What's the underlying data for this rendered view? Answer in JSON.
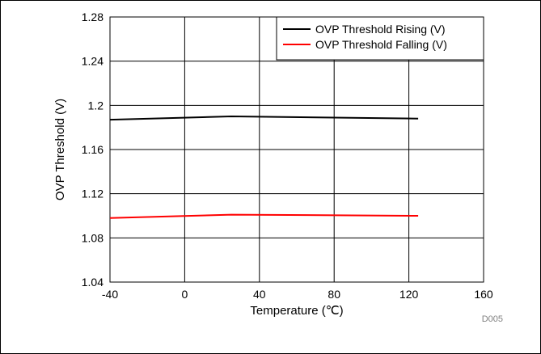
{
  "chart_data": {
    "type": "line",
    "title": "",
    "xlabel": "Temperature (℃)",
    "ylabel": "OVP Threshold (V)",
    "xlim": [
      -40,
      160
    ],
    "ylim": [
      1.04,
      1.28
    ],
    "xticks": [
      -40,
      0,
      40,
      80,
      120,
      160
    ],
    "yticks": [
      1.04,
      1.08,
      1.12,
      1.16,
      1.2,
      1.24,
      1.28
    ],
    "xtick_labels": [
      "-40",
      "0",
      "40",
      "80",
      "120",
      "160"
    ],
    "ytick_labels": [
      "1.04",
      "1.08",
      "1.12",
      "1.16",
      "1.2",
      "1.24",
      "1.28"
    ],
    "grid": true,
    "legend_position": "top-right",
    "series": [
      {
        "name": "OVP Threshold Rising (V)",
        "color": "#000000",
        "x": [
          -40,
          25,
          125
        ],
        "y": [
          1.187,
          1.19,
          1.188
        ]
      },
      {
        "name": "OVP Threshold Falling (V)",
        "color": "#ff0000",
        "x": [
          -40,
          25,
          125
        ],
        "y": [
          1.098,
          1.101,
          1.1
        ]
      }
    ],
    "annotations": [
      "D005"
    ]
  }
}
